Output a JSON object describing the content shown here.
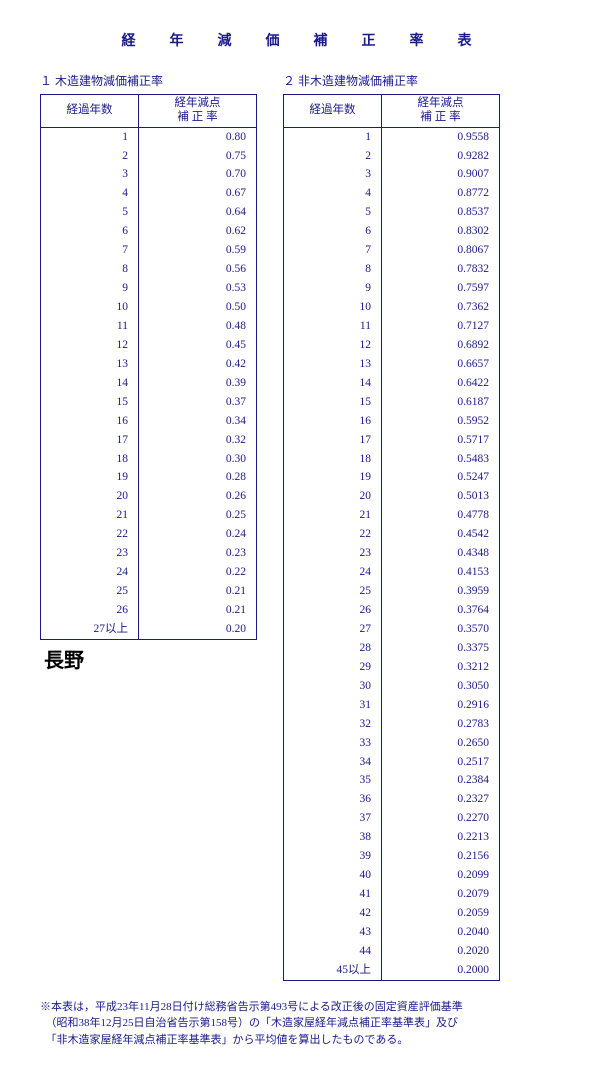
{
  "title": "経　年　減　価　補　正　率　表",
  "table1": {
    "subtitle": "１ 木造建物減価補正率",
    "head_year": "経過年数",
    "head_rate1": "経年減点",
    "head_rate2": "補 正 率",
    "rows": [
      {
        "y": "1",
        "r": "0.80"
      },
      {
        "y": "2",
        "r": "0.75"
      },
      {
        "y": "3",
        "r": "0.70"
      },
      {
        "y": "4",
        "r": "0.67"
      },
      {
        "y": "5",
        "r": "0.64"
      },
      {
        "y": "6",
        "r": "0.62"
      },
      {
        "y": "7",
        "r": "0.59"
      },
      {
        "y": "8",
        "r": "0.56"
      },
      {
        "y": "9",
        "r": "0.53"
      },
      {
        "y": "10",
        "r": "0.50"
      },
      {
        "y": "11",
        "r": "0.48"
      },
      {
        "y": "12",
        "r": "0.45"
      },
      {
        "y": "13",
        "r": "0.42"
      },
      {
        "y": "14",
        "r": "0.39"
      },
      {
        "y": "15",
        "r": "0.37"
      },
      {
        "y": "16",
        "r": "0.34"
      },
      {
        "y": "17",
        "r": "0.32"
      },
      {
        "y": "18",
        "r": "0.30"
      },
      {
        "y": "19",
        "r": "0.28"
      },
      {
        "y": "20",
        "r": "0.26"
      },
      {
        "y": "21",
        "r": "0.25"
      },
      {
        "y": "22",
        "r": "0.24"
      },
      {
        "y": "23",
        "r": "0.23"
      },
      {
        "y": "24",
        "r": "0.22"
      },
      {
        "y": "25",
        "r": "0.21"
      },
      {
        "y": "26",
        "r": "0.21"
      },
      {
        "y": "27以上",
        "r": "0.20"
      }
    ]
  },
  "table2": {
    "subtitle": "２ 非木造建物減価補正率",
    "head_year": "経過年数",
    "head_rate1": "経年減点",
    "head_rate2": "補 正 率",
    "rows": [
      {
        "y": "1",
        "r": "0.9558"
      },
      {
        "y": "2",
        "r": "0.9282"
      },
      {
        "y": "3",
        "r": "0.9007"
      },
      {
        "y": "4",
        "r": "0.8772"
      },
      {
        "y": "5",
        "r": "0.8537"
      },
      {
        "y": "6",
        "r": "0.8302"
      },
      {
        "y": "7",
        "r": "0.8067"
      },
      {
        "y": "8",
        "r": "0.7832"
      },
      {
        "y": "9",
        "r": "0.7597"
      },
      {
        "y": "10",
        "r": "0.7362"
      },
      {
        "y": "11",
        "r": "0.7127"
      },
      {
        "y": "12",
        "r": "0.6892"
      },
      {
        "y": "13",
        "r": "0.6657"
      },
      {
        "y": "14",
        "r": "0.6422"
      },
      {
        "y": "15",
        "r": "0.6187"
      },
      {
        "y": "16",
        "r": "0.5952"
      },
      {
        "y": "17",
        "r": "0.5717"
      },
      {
        "y": "18",
        "r": "0.5483"
      },
      {
        "y": "19",
        "r": "0.5247"
      },
      {
        "y": "20",
        "r": "0.5013"
      },
      {
        "y": "21",
        "r": "0.4778"
      },
      {
        "y": "22",
        "r": "0.4542"
      },
      {
        "y": "23",
        "r": "0.4348"
      },
      {
        "y": "24",
        "r": "0.4153"
      },
      {
        "y": "25",
        "r": "0.3959"
      },
      {
        "y": "26",
        "r": "0.3764"
      },
      {
        "y": "27",
        "r": "0.3570"
      },
      {
        "y": "28",
        "r": "0.3375"
      },
      {
        "y": "29",
        "r": "0.3212"
      },
      {
        "y": "30",
        "r": "0.3050"
      },
      {
        "y": "31",
        "r": "0.2916"
      },
      {
        "y": "32",
        "r": "0.2783"
      },
      {
        "y": "33",
        "r": "0.2650"
      },
      {
        "y": "34",
        "r": "0.2517"
      },
      {
        "y": "35",
        "r": "0.2384"
      },
      {
        "y": "36",
        "r": "0.2327"
      },
      {
        "y": "37",
        "r": "0.2270"
      },
      {
        "y": "38",
        "r": "0.2213"
      },
      {
        "y": "39",
        "r": "0.2156"
      },
      {
        "y": "40",
        "r": "0.2099"
      },
      {
        "y": "41",
        "r": "0.2079"
      },
      {
        "y": "42",
        "r": "0.2059"
      },
      {
        "y": "43",
        "r": "0.2040"
      },
      {
        "y": "44",
        "r": "0.2020"
      },
      {
        "y": "45以上",
        "r": "0.2000"
      }
    ]
  },
  "nagano": "長野",
  "footnote": "※本表は，平成23年11月28日付け総務省告示第493号による改正後の固定資産評価基準\n　（昭和38年12月25日自治省告示第158号）の「木造家屋経年減点補正率基準表」及び\n　「非木造家屋経年減点補正率基準表」から平均値を算出したものである。"
}
